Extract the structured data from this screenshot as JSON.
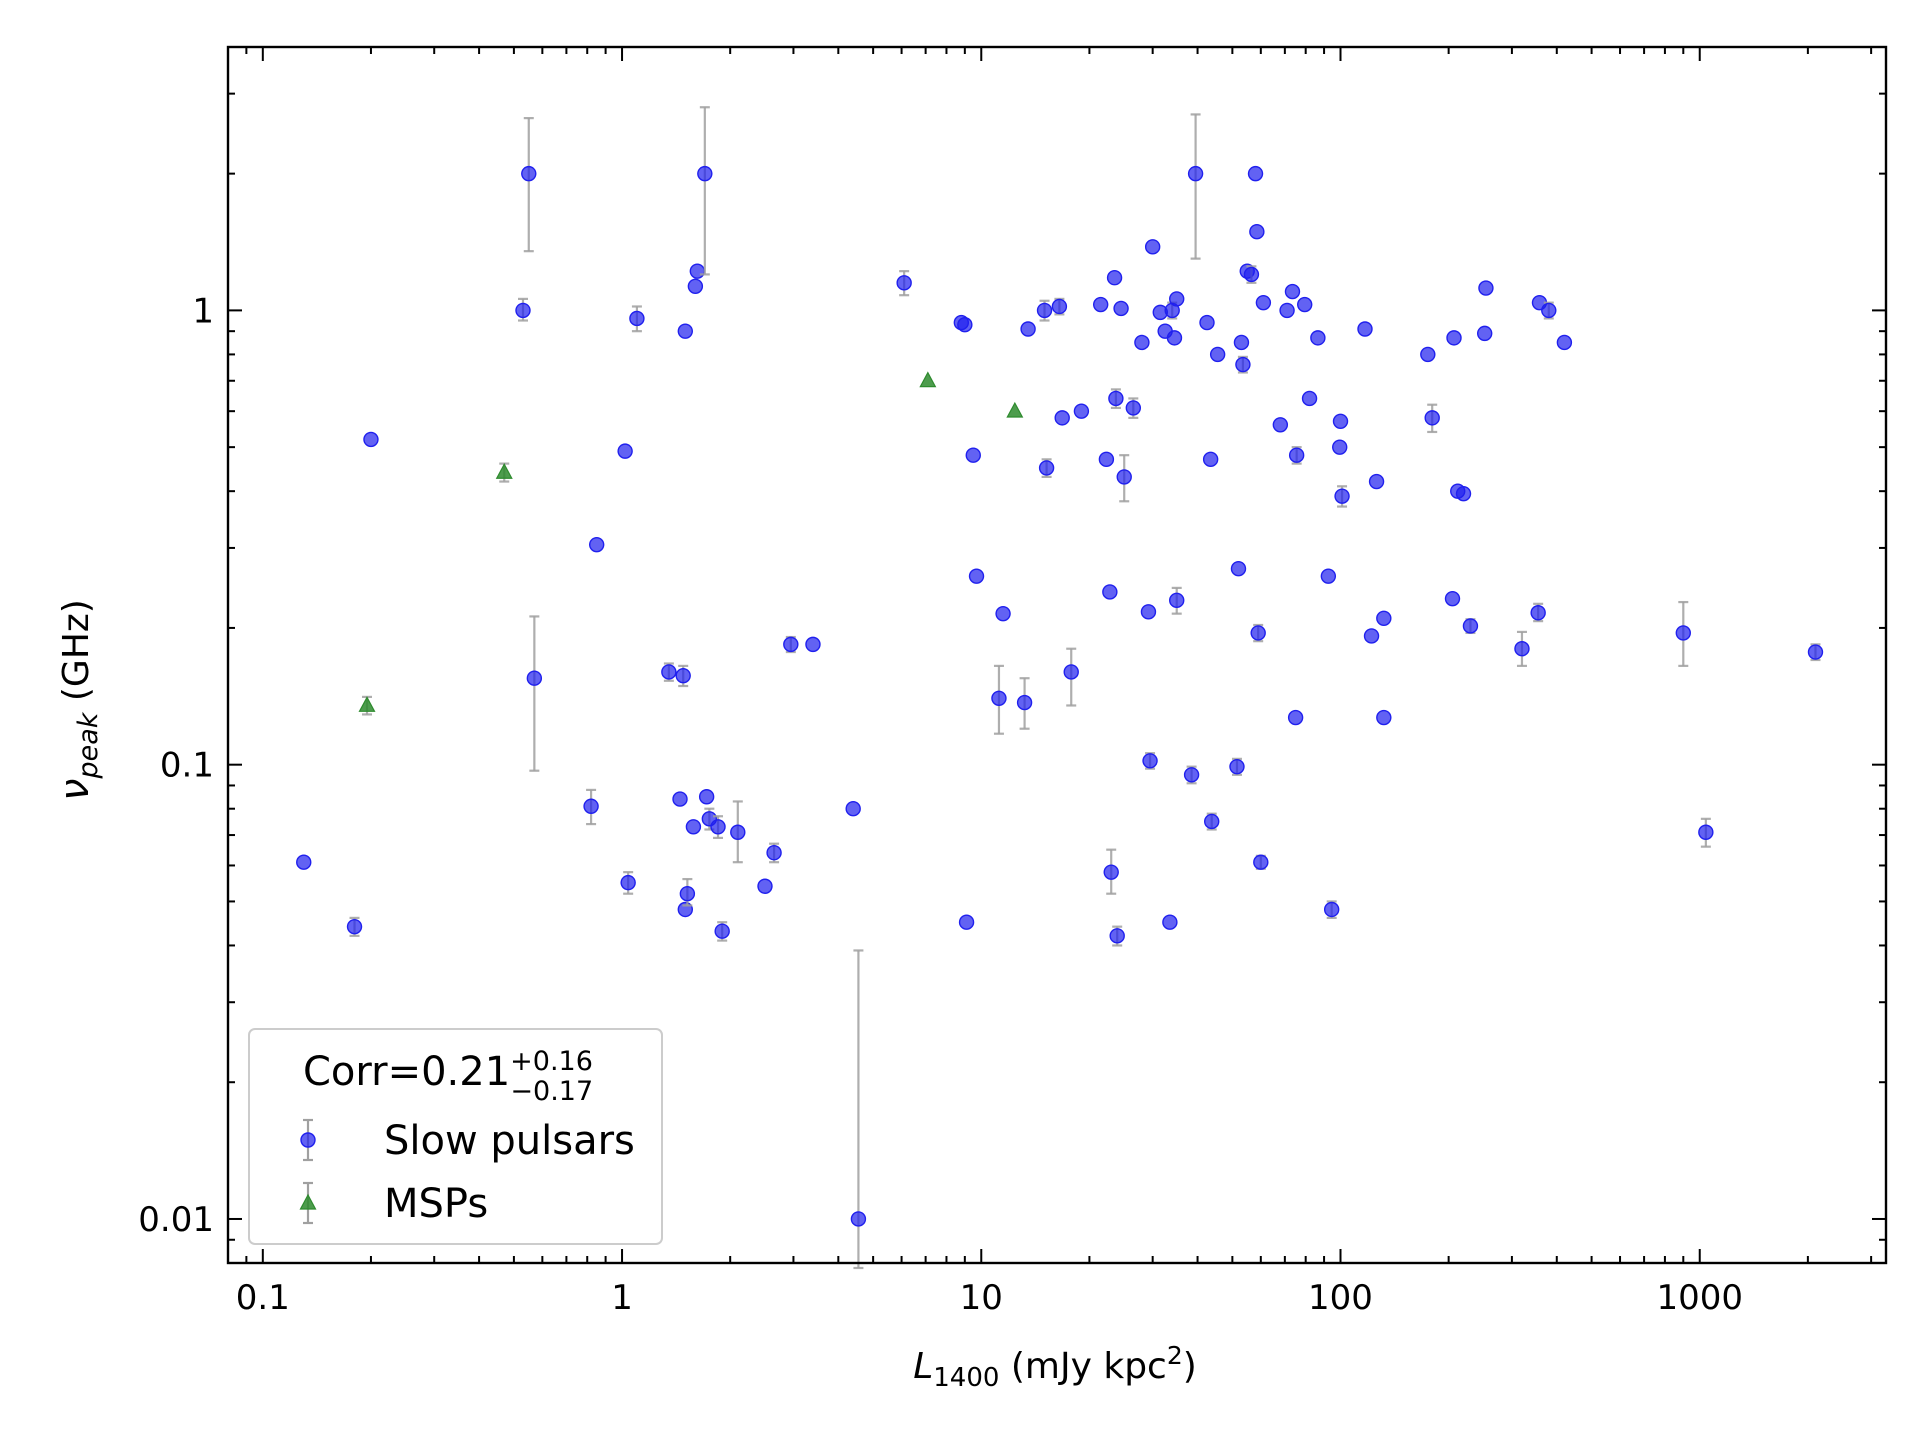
{
  "chart_data": {
    "type": "scatter",
    "xlabel": {
      "main": "L",
      "sub": "1400",
      "unit_pre": " (mJy kpc",
      "unit_sup": "2",
      "unit_post": ")"
    },
    "ylabel": {
      "main": "ν",
      "sub": "peak",
      "unit": " (GHz)"
    },
    "xscale": "log",
    "yscale": "log",
    "xlim": [
      0.08,
      3300
    ],
    "ylim": [
      0.008,
      3.8
    ],
    "x_ticks": [
      {
        "value": 0.1,
        "label": "0.1"
      },
      {
        "value": 1,
        "label": "1"
      },
      {
        "value": 10,
        "label": "10"
      },
      {
        "value": 100,
        "label": "100"
      },
      {
        "value": 1000,
        "label": "1000"
      }
    ],
    "y_ticks": [
      {
        "value": 0.01,
        "label": "0.01"
      },
      {
        "value": 0.1,
        "label": "0.1"
      },
      {
        "value": 1,
        "label": "1"
      }
    ],
    "grid": false,
    "legend": {
      "position": "bottom-left",
      "title": {
        "prefix": "Corr=0.21",
        "sup": "+0.16",
        "sub": "−0.17"
      },
      "entries": [
        {
          "label": "Slow pulsars",
          "marker": "circle",
          "color": "#2020ee"
        },
        {
          "label": "MSPs",
          "marker": "triangle",
          "color": "#2e8b2e"
        }
      ]
    },
    "series": [
      {
        "name": "Slow pulsars",
        "marker": "circle",
        "color": "#2020ee",
        "errorbar_color": "#a0a0a0",
        "points": [
          {
            "x": 0.13,
            "y": 0.061
          },
          {
            "x": 0.18,
            "y": 0.044,
            "ylo": 0.042,
            "yhi": 0.046
          },
          {
            "x": 0.2,
            "y": 0.52
          },
          {
            "x": 0.53,
            "y": 1.0,
            "ylo": 0.95,
            "yhi": 1.06
          },
          {
            "x": 0.55,
            "y": 2.0,
            "ylo": 1.35,
            "yhi": 2.65
          },
          {
            "x": 0.57,
            "y": 0.155,
            "ylo": 0.097,
            "yhi": 0.212
          },
          {
            "x": 0.82,
            "y": 0.081,
            "ylo": 0.074,
            "yhi": 0.088
          },
          {
            "x": 0.85,
            "y": 0.305
          },
          {
            "x": 1.02,
            "y": 0.49
          },
          {
            "x": 1.04,
            "y": 0.055,
            "ylo": 0.052,
            "yhi": 0.058
          },
          {
            "x": 1.1,
            "y": 0.96,
            "ylo": 0.9,
            "yhi": 1.02
          },
          {
            "x": 1.35,
            "y": 0.16,
            "ylo": 0.153,
            "yhi": 0.167
          },
          {
            "x": 1.45,
            "y": 0.084
          },
          {
            "x": 1.48,
            "y": 0.157,
            "ylo": 0.149,
            "yhi": 0.165
          },
          {
            "x": 1.5,
            "y": 0.9
          },
          {
            "x": 1.5,
            "y": 0.048
          },
          {
            "x": 1.52,
            "y": 0.052,
            "ylo": 0.049,
            "yhi": 0.056
          },
          {
            "x": 1.58,
            "y": 0.073
          },
          {
            "x": 1.6,
            "y": 1.13
          },
          {
            "x": 1.62,
            "y": 1.22
          },
          {
            "x": 1.7,
            "y": 2.0,
            "ylo": 1.2,
            "yhi": 2.8
          },
          {
            "x": 1.72,
            "y": 0.085
          },
          {
            "x": 1.75,
            "y": 0.076,
            "ylo": 0.072,
            "yhi": 0.08
          },
          {
            "x": 1.85,
            "y": 0.073,
            "ylo": 0.069,
            "yhi": 0.077
          },
          {
            "x": 1.9,
            "y": 0.043,
            "ylo": 0.041,
            "yhi": 0.045
          },
          {
            "x": 2.1,
            "y": 0.071,
            "ylo": 0.061,
            "yhi": 0.083
          },
          {
            "x": 2.5,
            "y": 0.054
          },
          {
            "x": 2.65,
            "y": 0.064,
            "ylo": 0.061,
            "yhi": 0.067
          },
          {
            "x": 2.95,
            "y": 0.184,
            "ylo": 0.177,
            "yhi": 0.191
          },
          {
            "x": 3.4,
            "y": 0.184
          },
          {
            "x": 4.4,
            "y": 0.08
          },
          {
            "x": 4.55,
            "y": 0.01,
            "ylo": 0.0078,
            "yhi": 0.039
          },
          {
            "x": 6.1,
            "y": 1.15,
            "ylo": 1.08,
            "yhi": 1.22
          },
          {
            "x": 8.8,
            "y": 0.94
          },
          {
            "x": 9.0,
            "y": 0.93
          },
          {
            "x": 9.1,
            "y": 0.045
          },
          {
            "x": 9.5,
            "y": 0.48
          },
          {
            "x": 9.7,
            "y": 0.26
          },
          {
            "x": 11.2,
            "y": 0.14,
            "ylo": 0.117,
            "yhi": 0.165
          },
          {
            "x": 11.5,
            "y": 0.215
          },
          {
            "x": 13.2,
            "y": 0.137,
            "ylo": 0.12,
            "yhi": 0.155
          },
          {
            "x": 13.5,
            "y": 0.91
          },
          {
            "x": 15.0,
            "y": 1.0,
            "ylo": 0.95,
            "yhi": 1.05
          },
          {
            "x": 15.2,
            "y": 0.45,
            "ylo": 0.43,
            "yhi": 0.47
          },
          {
            "x": 16.5,
            "y": 1.02,
            "ylo": 0.98,
            "yhi": 1.06
          },
          {
            "x": 16.8,
            "y": 0.58
          },
          {
            "x": 17.8,
            "y": 0.16,
            "ylo": 0.135,
            "yhi": 0.18
          },
          {
            "x": 19.0,
            "y": 0.6
          },
          {
            "x": 21.5,
            "y": 1.03
          },
          {
            "x": 22.3,
            "y": 0.47
          },
          {
            "x": 22.8,
            "y": 0.24
          },
          {
            "x": 23.0,
            "y": 0.058,
            "ylo": 0.052,
            "yhi": 0.065
          },
          {
            "x": 23.5,
            "y": 1.18
          },
          {
            "x": 23.7,
            "y": 0.64,
            "ylo": 0.61,
            "yhi": 0.67
          },
          {
            "x": 23.9,
            "y": 0.042,
            "ylo": 0.04,
            "yhi": 0.044
          },
          {
            "x": 24.5,
            "y": 1.01
          },
          {
            "x": 25.0,
            "y": 0.43,
            "ylo": 0.38,
            "yhi": 0.48
          },
          {
            "x": 26.5,
            "y": 0.61,
            "ylo": 0.58,
            "yhi": 0.64
          },
          {
            "x": 28.0,
            "y": 0.85
          },
          {
            "x": 29.2,
            "y": 0.217
          },
          {
            "x": 29.5,
            "y": 0.102,
            "ylo": 0.098,
            "yhi": 0.106
          },
          {
            "x": 30.0,
            "y": 1.38
          },
          {
            "x": 31.5,
            "y": 0.99
          },
          {
            "x": 32.5,
            "y": 0.9
          },
          {
            "x": 33.5,
            "y": 0.045
          },
          {
            "x": 34.0,
            "y": 1.0,
            "ylo": 0.96,
            "yhi": 1.04
          },
          {
            "x": 34.5,
            "y": 0.87
          },
          {
            "x": 35.0,
            "y": 1.06
          },
          {
            "x": 35.0,
            "y": 0.23,
            "ylo": 0.215,
            "yhi": 0.245
          },
          {
            "x": 38.5,
            "y": 0.095,
            "ylo": 0.091,
            "yhi": 0.099
          },
          {
            "x": 39.5,
            "y": 2.0,
            "ylo": 1.3,
            "yhi": 2.7
          },
          {
            "x": 42.5,
            "y": 0.94
          },
          {
            "x": 43.5,
            "y": 0.47
          },
          {
            "x": 43.8,
            "y": 0.075,
            "ylo": 0.072,
            "yhi": 0.078
          },
          {
            "x": 45.5,
            "y": 0.8
          },
          {
            "x": 51.5,
            "y": 0.099,
            "ylo": 0.095,
            "yhi": 0.103
          },
          {
            "x": 52.0,
            "y": 0.27
          },
          {
            "x": 53.0,
            "y": 0.85
          },
          {
            "x": 53.5,
            "y": 0.76,
            "ylo": 0.73,
            "yhi": 0.79
          },
          {
            "x": 55.0,
            "y": 1.22
          },
          {
            "x": 56.5,
            "y": 1.2,
            "ylo": 1.15,
            "yhi": 1.25
          },
          {
            "x": 58.0,
            "y": 2.0
          },
          {
            "x": 58.5,
            "y": 1.49
          },
          {
            "x": 59.0,
            "y": 0.195,
            "ylo": 0.187,
            "yhi": 0.203
          },
          {
            "x": 60.0,
            "y": 0.061,
            "ylo": 0.059,
            "yhi": 0.063
          },
          {
            "x": 61.0,
            "y": 1.04
          },
          {
            "x": 68.0,
            "y": 0.56
          },
          {
            "x": 71.0,
            "y": 1.0
          },
          {
            "x": 73.5,
            "y": 1.1
          },
          {
            "x": 75.0,
            "y": 0.127
          },
          {
            "x": 75.5,
            "y": 0.48,
            "ylo": 0.46,
            "yhi": 0.5
          },
          {
            "x": 79.5,
            "y": 1.03
          },
          {
            "x": 82.0,
            "y": 0.64
          },
          {
            "x": 86.5,
            "y": 0.87
          },
          {
            "x": 92.5,
            "y": 0.26
          },
          {
            "x": 94.5,
            "y": 0.048,
            "ylo": 0.046,
            "yhi": 0.05
          },
          {
            "x": 99.5,
            "y": 0.5
          },
          {
            "x": 100.0,
            "y": 0.57
          },
          {
            "x": 101.0,
            "y": 0.39,
            "ylo": 0.37,
            "yhi": 0.41
          },
          {
            "x": 117.0,
            "y": 0.91
          },
          {
            "x": 122.0,
            "y": 0.192
          },
          {
            "x": 126.0,
            "y": 0.42
          },
          {
            "x": 132.0,
            "y": 0.21
          },
          {
            "x": 132.0,
            "y": 0.127
          },
          {
            "x": 175.0,
            "y": 0.8
          },
          {
            "x": 180.0,
            "y": 0.58,
            "ylo": 0.54,
            "yhi": 0.62
          },
          {
            "x": 205.0,
            "y": 0.232
          },
          {
            "x": 207.0,
            "y": 0.87
          },
          {
            "x": 212.0,
            "y": 0.4
          },
          {
            "x": 220.0,
            "y": 0.395
          },
          {
            "x": 230.0,
            "y": 0.202,
            "ylo": 0.195,
            "yhi": 0.209
          },
          {
            "x": 252.0,
            "y": 0.89
          },
          {
            "x": 254.0,
            "y": 1.12
          },
          {
            "x": 320.0,
            "y": 0.18,
            "ylo": 0.165,
            "yhi": 0.196
          },
          {
            "x": 355.0,
            "y": 0.216,
            "ylo": 0.207,
            "yhi": 0.226
          },
          {
            "x": 358.0,
            "y": 1.04
          },
          {
            "x": 380.0,
            "y": 1.0,
            "ylo": 0.96,
            "yhi": 1.04
          },
          {
            "x": 420.0,
            "y": 0.85
          },
          {
            "x": 900.0,
            "y": 0.195,
            "ylo": 0.165,
            "yhi": 0.228
          },
          {
            "x": 1040.0,
            "y": 0.071,
            "ylo": 0.066,
            "yhi": 0.076
          },
          {
            "x": 2100.0,
            "y": 0.177,
            "ylo": 0.17,
            "yhi": 0.184
          }
        ]
      },
      {
        "name": "MSPs",
        "marker": "triangle",
        "color": "#2e8b2e",
        "errorbar_color": "#a0a0a0",
        "points": [
          {
            "x": 0.195,
            "y": 0.135,
            "ylo": 0.129,
            "yhi": 0.141
          },
          {
            "x": 0.47,
            "y": 0.44,
            "ylo": 0.42,
            "yhi": 0.46
          },
          {
            "x": 7.1,
            "y": 0.7
          },
          {
            "x": 12.4,
            "y": 0.6
          }
        ]
      }
    ]
  }
}
